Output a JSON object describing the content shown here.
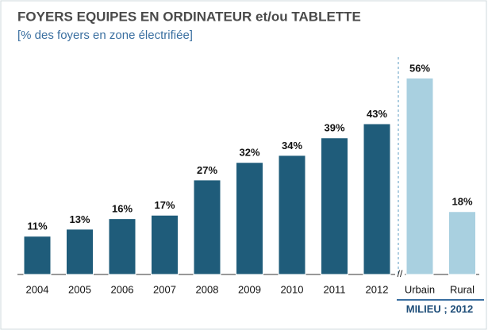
{
  "chart_data": [
    {
      "type": "bar",
      "title": "FOYERS EQUIPES EN ORDINATEUR et/ou TABLETTE",
      "subtitle": "[% des foyers en zone électrifiée]",
      "categories": [
        "2004",
        "2005",
        "2006",
        "2007",
        "2008",
        "2009",
        "2010",
        "2011",
        "2012"
      ],
      "values": [
        11,
        13,
        16,
        17,
        27,
        32,
        34,
        39,
        43
      ],
      "value_labels": [
        "11%",
        "13%",
        "16%",
        "17%",
        "27%",
        "32%",
        "34%",
        "39%",
        "43%"
      ],
      "color": "#1f5c7a"
    },
    {
      "type": "bar",
      "xlabel": "MILIEU ; 2012",
      "categories": [
        "Urbain",
        "Rural"
      ],
      "values": [
        56,
        18
      ],
      "value_labels": [
        "56%",
        "18%"
      ],
      "color": "#a9d0e0"
    }
  ]
}
